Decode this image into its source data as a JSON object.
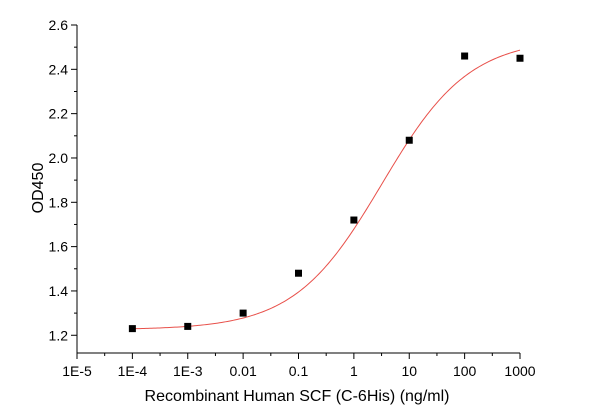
{
  "chart_data": {
    "type": "scatter",
    "title": "",
    "xlabel": "Recombinant Human SCF (C-6His) (ng/ml)",
    "ylabel": "OD450",
    "x_scale": "log",
    "xlim": [
      1e-05,
      1000
    ],
    "ylim": [
      1.12,
      2.6
    ],
    "x_ticks": [
      {
        "value": 1e-05,
        "label": "1E-5"
      },
      {
        "value": 0.0001,
        "label": "1E-4"
      },
      {
        "value": 0.001,
        "label": "1E-3"
      },
      {
        "value": 0.01,
        "label": "0.01"
      },
      {
        "value": 0.1,
        "label": "0.1"
      },
      {
        "value": 1,
        "label": "1"
      },
      {
        "value": 10,
        "label": "10"
      },
      {
        "value": 100,
        "label": "100"
      },
      {
        "value": 1000,
        "label": "1000"
      }
    ],
    "y_ticks": [
      {
        "value": 1.2,
        "label": "1.2"
      },
      {
        "value": 1.4,
        "label": "1.4"
      },
      {
        "value": 1.6,
        "label": "1.6"
      },
      {
        "value": 1.8,
        "label": "1.8"
      },
      {
        "value": 2.0,
        "label": "2.0"
      },
      {
        "value": 2.2,
        "label": "2.2"
      },
      {
        "value": 2.4,
        "label": "2.4"
      },
      {
        "value": 2.6,
        "label": "2.6"
      }
    ],
    "points": [
      {
        "x": 0.0001,
        "y": 1.23
      },
      {
        "x": 0.001,
        "y": 1.24
      },
      {
        "x": 0.01,
        "y": 1.3
      },
      {
        "x": 0.1,
        "y": 1.48
      },
      {
        "x": 1,
        "y": 1.72
      },
      {
        "x": 10,
        "y": 2.08
      },
      {
        "x": 100,
        "y": 2.46
      },
      {
        "x": 1000,
        "y": 2.45
      }
    ],
    "fit_curve": {
      "type": "4PL",
      "bottom": 1.225,
      "top": 2.54,
      "ec50": 3.2,
      "hill": 0.55
    },
    "grid": false,
    "colors": {
      "points": "#000000",
      "fit": "#e8504a",
      "axis": "#000000"
    }
  }
}
